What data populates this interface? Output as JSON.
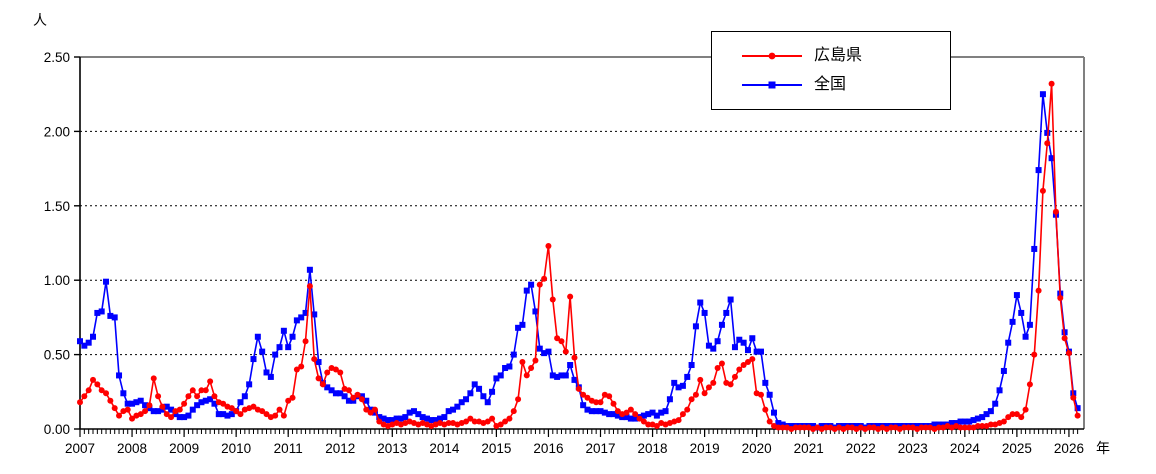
{
  "figure": {
    "unit_label": "人",
    "year_label": "年"
  },
  "legend": {
    "position": "top-center",
    "items": [
      {
        "label": "広島県",
        "color": "#ff0000",
        "marker": "circle"
      },
      {
        "label": "全国",
        "color": "#0000ff",
        "marker": "square"
      }
    ]
  },
  "chart_data": {
    "type": "line",
    "title": "",
    "xlabel": "年",
    "ylabel": "人",
    "x_start": "2007-01",
    "x_end": "2026-03",
    "x_tick_years": [
      2007,
      2008,
      2009,
      2010,
      2011,
      2012,
      2013,
      2014,
      2015,
      2016,
      2017,
      2018,
      2019,
      2020,
      2021,
      2022,
      2023,
      2024,
      2025,
      2026
    ],
    "ylim": [
      0,
      2.5
    ],
    "y_ticks": [
      "0.00",
      "0.50",
      "1.00",
      "1.50",
      "2.00",
      "2.50"
    ],
    "grid": "horizontal-dashed",
    "legend_position": "top-center",
    "series": [
      {
        "name": "全国",
        "color": "#0000ff",
        "marker": "square",
        "values": [
          0.59,
          0.56,
          0.58,
          0.62,
          0.78,
          0.79,
          0.99,
          0.76,
          0.75,
          0.36,
          0.24,
          0.17,
          0.17,
          0.18,
          0.19,
          0.16,
          0.14,
          0.12,
          0.12,
          0.13,
          0.15,
          0.13,
          0.1,
          0.08,
          0.08,
          0.09,
          0.13,
          0.16,
          0.18,
          0.19,
          0.2,
          0.17,
          0.1,
          0.1,
          0.09,
          0.1,
          0.12,
          0.18,
          0.22,
          0.3,
          0.47,
          0.62,
          0.52,
          0.38,
          0.35,
          0.5,
          0.55,
          0.66,
          0.55,
          0.62,
          0.73,
          0.75,
          0.78,
          1.07,
          0.77,
          0.45,
          0.31,
          0.28,
          0.26,
          0.24,
          0.24,
          0.22,
          0.19,
          0.19,
          0.22,
          0.22,
          0.19,
          0.13,
          0.11,
          0.08,
          0.07,
          0.06,
          0.06,
          0.07,
          0.07,
          0.08,
          0.11,
          0.12,
          0.1,
          0.08,
          0.07,
          0.06,
          0.06,
          0.07,
          0.08,
          0.12,
          0.13,
          0.15,
          0.18,
          0.2,
          0.24,
          0.3,
          0.27,
          0.22,
          0.18,
          0.25,
          0.34,
          0.36,
          0.41,
          0.42,
          0.5,
          0.68,
          0.7,
          0.93,
          0.97,
          0.79,
          0.54,
          0.51,
          0.52,
          0.36,
          0.35,
          0.36,
          0.36,
          0.43,
          0.33,
          0.28,
          0.16,
          0.13,
          0.12,
          0.12,
          0.12,
          0.11,
          0.1,
          0.1,
          0.09,
          0.08,
          0.08,
          0.07,
          0.07,
          0.08,
          0.09,
          0.1,
          0.11,
          0.09,
          0.11,
          0.12,
          0.2,
          0.31,
          0.28,
          0.29,
          0.35,
          0.43,
          0.69,
          0.85,
          0.78,
          0.56,
          0.54,
          0.59,
          0.7,
          0.78,
          0.87,
          0.55,
          0.6,
          0.58,
          0.53,
          0.61,
          0.52,
          0.52,
          0.31,
          0.23,
          0.11,
          0.04,
          0.03,
          0.02,
          0.02,
          0.02,
          0.02,
          0.02,
          0.02,
          0.02,
          0.01,
          0.02,
          0.02,
          0.02,
          0.01,
          0.02,
          0.02,
          0.02,
          0.02,
          0.02,
          0.02,
          0.01,
          0.02,
          0.02,
          0.02,
          0.02,
          0.02,
          0.02,
          0.02,
          0.02,
          0.02,
          0.02,
          0.02,
          0.02,
          0.02,
          0.02,
          0.02,
          0.03,
          0.03,
          0.03,
          0.03,
          0.04,
          0.04,
          0.05,
          0.05,
          0.05,
          0.06,
          0.07,
          0.08,
          0.1,
          0.12,
          0.17,
          0.26,
          0.39,
          0.58,
          0.72,
          0.9,
          0.78,
          0.62,
          0.7,
          1.21,
          1.74,
          2.25,
          1.99,
          1.82,
          1.44,
          0.91,
          0.65,
          0.52,
          0.24,
          0.14
        ]
      },
      {
        "name": "広島県",
        "color": "#ff0000",
        "marker": "circle",
        "values": [
          0.18,
          0.22,
          0.26,
          0.33,
          0.3,
          0.26,
          0.24,
          0.19,
          0.14,
          0.09,
          0.12,
          0.13,
          0.07,
          0.09,
          0.1,
          0.12,
          0.16,
          0.34,
          0.22,
          0.15,
          0.1,
          0.08,
          0.12,
          0.13,
          0.17,
          0.22,
          0.26,
          0.22,
          0.26,
          0.26,
          0.32,
          0.22,
          0.18,
          0.17,
          0.15,
          0.14,
          0.12,
          0.1,
          0.13,
          0.14,
          0.15,
          0.13,
          0.12,
          0.1,
          0.08,
          0.09,
          0.13,
          0.09,
          0.19,
          0.21,
          0.4,
          0.42,
          0.59,
          0.96,
          0.47,
          0.34,
          0.3,
          0.38,
          0.41,
          0.4,
          0.38,
          0.27,
          0.26,
          0.21,
          0.23,
          0.2,
          0.13,
          0.11,
          0.13,
          0.05,
          0.03,
          0.02,
          0.03,
          0.04,
          0.03,
          0.04,
          0.05,
          0.04,
          0.03,
          0.04,
          0.03,
          0.02,
          0.03,
          0.04,
          0.03,
          0.04,
          0.04,
          0.03,
          0.04,
          0.05,
          0.07,
          0.05,
          0.05,
          0.04,
          0.05,
          0.07,
          0.02,
          0.03,
          0.05,
          0.07,
          0.12,
          0.2,
          0.45,
          0.36,
          0.41,
          0.46,
          0.97,
          1.01,
          1.23,
          0.87,
          0.61,
          0.59,
          0.52,
          0.89,
          0.48,
          0.27,
          0.23,
          0.21,
          0.19,
          0.18,
          0.18,
          0.23,
          0.22,
          0.17,
          0.12,
          0.1,
          0.11,
          0.13,
          0.1,
          0.07,
          0.05,
          0.03,
          0.03,
          0.02,
          0.04,
          0.03,
          0.04,
          0.05,
          0.06,
          0.1,
          0.13,
          0.2,
          0.23,
          0.33,
          0.24,
          0.28,
          0.31,
          0.41,
          0.44,
          0.31,
          0.3,
          0.35,
          0.4,
          0.43,
          0.45,
          0.47,
          0.24,
          0.23,
          0.13,
          0.05,
          0.02,
          0.01,
          0.01,
          0.01,
          0.0,
          0.01,
          0.01,
          0.01,
          0.01,
          0.0,
          0.01,
          0.0,
          0.01,
          0.01,
          0.0,
          0.01,
          0.0,
          0.01,
          0.01,
          0.0,
          0.01,
          0.0,
          0.01,
          0.01,
          0.0,
          0.01,
          0.0,
          0.01,
          0.01,
          0.0,
          0.01,
          0.01,
          0.01,
          0.0,
          0.01,
          0.01,
          0.01,
          0.0,
          0.01,
          0.01,
          0.02,
          0.01,
          0.02,
          0.01,
          0.01,
          0.01,
          0.01,
          0.02,
          0.02,
          0.02,
          0.03,
          0.03,
          0.04,
          0.05,
          0.08,
          0.1,
          0.1,
          0.08,
          0.13,
          0.3,
          0.5,
          0.93,
          1.6,
          1.92,
          2.32,
          1.46,
          0.88,
          0.61,
          0.51,
          0.21,
          0.09
        ]
      }
    ]
  }
}
